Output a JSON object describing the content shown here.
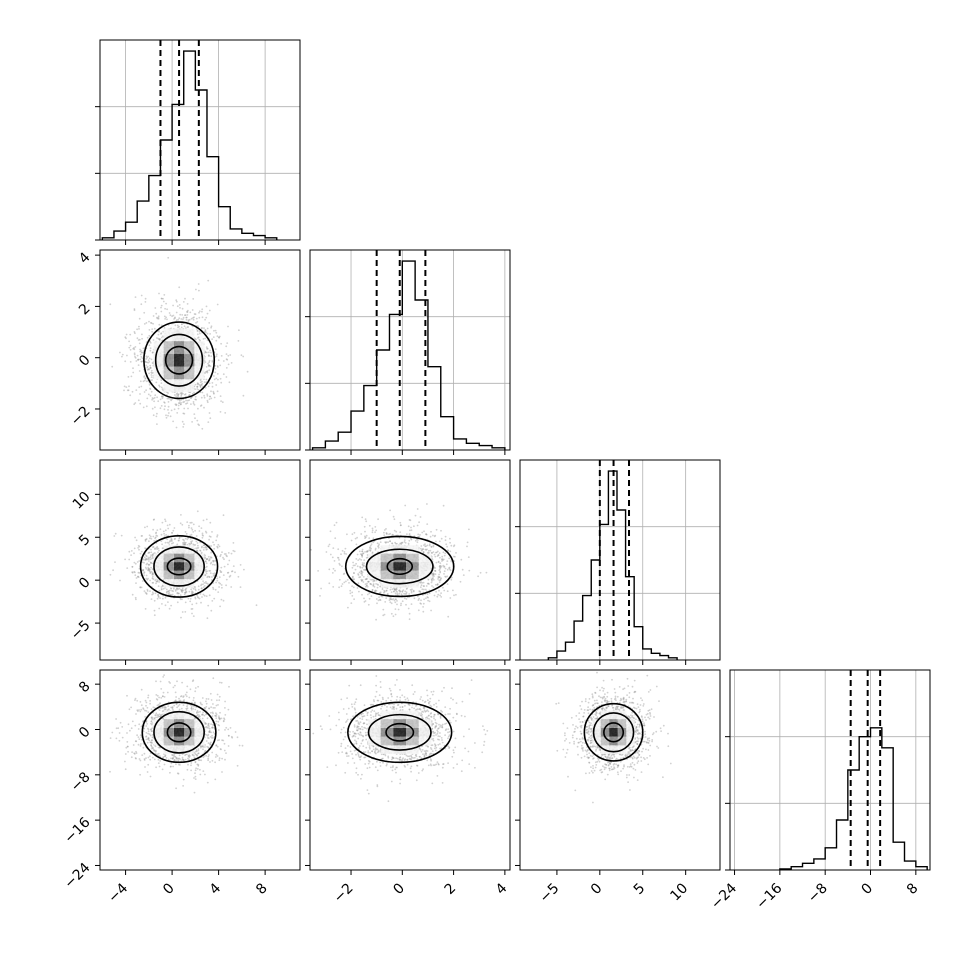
{
  "chart_data": {
    "type": "corner",
    "grid": true,
    "xlabel": "",
    "ylabel": "",
    "parameters": [
      {
        "xlim": [
          -6.2,
          11.0
        ],
        "ticks": [
          -4,
          0,
          4,
          8
        ],
        "tick_labels": [
          "−4",
          "0",
          "4",
          "8"
        ],
        "quantiles": [
          -1.0,
          0.6,
          2.3
        ],
        "hist": {
          "edges": [
            -6,
            -5,
            -4,
            -3,
            -2,
            -1,
            0,
            1,
            2,
            3,
            4,
            5,
            6,
            7,
            8,
            9
          ],
          "counts": [
            2,
            8,
            16,
            35,
            58,
            90,
            122,
            170,
            135,
            75,
            30,
            10,
            6,
            4,
            2
          ]
        }
      },
      {
        "xlim": [
          -3.6,
          4.2
        ],
        "ticks": [
          -2,
          0,
          2,
          4
        ],
        "tick_labels": [
          "−2",
          "0",
          "2",
          "4"
        ],
        "quantiles": [
          -1.0,
          -0.1,
          0.9
        ],
        "hist": {
          "edges": [
            -3.5,
            -3,
            -2.5,
            -2,
            -1.5,
            -1,
            -0.5,
            0,
            0.5,
            1,
            1.5,
            2,
            2.5,
            3,
            3.5,
            4
          ],
          "counts": [
            2,
            8,
            16,
            35,
            58,
            90,
            122,
            170,
            135,
            75,
            30,
            10,
            6,
            4,
            2
          ]
        }
      },
      {
        "xlim": [
          -9.3,
          14.0
        ],
        "ticks": [
          -5,
          0,
          5,
          10
        ],
        "tick_labels": [
          "−5",
          "0",
          "5",
          "10"
        ],
        "quantiles": [
          0.0,
          1.6,
          3.4
        ],
        "hist": {
          "edges": [
            -6,
            -5,
            -4,
            -3,
            -2,
            -1,
            0,
            1,
            2,
            3,
            4,
            5,
            6,
            7,
            8,
            9
          ],
          "counts": [
            2,
            8,
            16,
            35,
            58,
            90,
            122,
            170,
            135,
            75,
            30,
            10,
            6,
            4,
            2
          ]
        }
      },
      {
        "xlim": [
          -24.8,
          10.5
        ],
        "ticks": [
          -24,
          -16,
          -8,
          0,
          8
        ],
        "tick_labels": [
          "−24",
          "−16",
          "−8",
          "0",
          "8"
        ],
        "quantiles": [
          -3.5,
          -0.5,
          1.7
        ],
        "hist": {
          "edges": [
            -16,
            -14,
            -12,
            -10,
            -8,
            -6,
            -4,
            -2,
            0,
            2,
            4,
            6,
            8,
            10
          ],
          "counts": [
            1,
            3,
            6,
            10,
            20,
            45,
            90,
            120,
            128,
            110,
            25,
            8,
            3
          ]
        }
      }
    ],
    "marginal_ylims": [
      [
        0,
        180
      ],
      [
        0,
        180
      ],
      [
        0,
        180
      ],
      [
        0,
        180
      ]
    ],
    "marginal_yticks": [
      [
        0,
        60,
        120
      ],
      [
        0,
        60,
        120
      ],
      [
        0,
        60,
        120
      ],
      [
        0,
        60,
        120
      ]
    ],
    "row_ylims": [
      null,
      [
        -3.6,
        4.2
      ],
      [
        -9.3,
        14.0
      ],
      [
        -24.8,
        10.5
      ]
    ],
    "row_yticks": [
      null,
      [
        -2,
        0,
        2,
        4
      ],
      [
        -5,
        0,
        5,
        10
      ],
      [
        -24,
        -16,
        -8,
        0,
        8
      ]
    ],
    "row_ytick_labels": [
      null,
      [
        "−2",
        "0",
        "2",
        "4"
      ],
      [
        "−5",
        "0",
        "5",
        "10"
      ],
      [
        "−24",
        "−16",
        "−8",
        "0",
        "8"
      ]
    ],
    "joint_panels": [
      {
        "row": 1,
        "col": 0,
        "center": [
          0.6,
          -0.1
        ],
        "sigma": [
          1.6,
          0.9
        ],
        "contours": [
          [
            0.4,
            0.33
          ],
          [
            0.7,
            0.62
          ],
          [
            1.05,
            0.92
          ]
        ]
      },
      {
        "row": 2,
        "col": 0,
        "center": [
          0.6,
          1.6
        ],
        "sigma": [
          1.6,
          1.8
        ],
        "contours": [
          [
            0.35,
            0.3
          ],
          [
            0.75,
            0.7
          ],
          [
            1.15,
            1.1
          ]
        ]
      },
      {
        "row": 2,
        "col": 1,
        "center": [
          -0.1,
          1.6
        ],
        "sigma": [
          0.9,
          1.8
        ],
        "contours": [
          [
            0.3,
            0.28
          ],
          [
            0.8,
            0.62
          ],
          [
            1.3,
            1.08
          ]
        ]
      },
      {
        "row": 3,
        "col": 0,
        "center": [
          0.6,
          -0.5
        ],
        "sigma": [
          1.6,
          2.8
        ],
        "contours": [
          [
            0.35,
            0.33
          ],
          [
            0.75,
            0.72
          ],
          [
            1.1,
            1.05
          ]
        ]
      },
      {
        "row": 3,
        "col": 1,
        "center": [
          -0.1,
          -0.5
        ],
        "sigma": [
          0.9,
          2.8
        ],
        "contours": [
          [
            0.33,
            0.3
          ],
          [
            0.75,
            0.62
          ],
          [
            1.25,
            1.05
          ]
        ]
      },
      {
        "row": 3,
        "col": 2,
        "center": [
          1.6,
          -0.5
        ],
        "sigma": [
          1.8,
          2.8
        ],
        "contours": [
          [
            0.35,
            0.33
          ],
          [
            0.72,
            0.68
          ],
          [
            1.05,
            1.0
          ]
        ]
      }
    ],
    "joint_scatter_color": "#999999",
    "line_color": "#000000",
    "grid_color": "#b0b0b0"
  }
}
